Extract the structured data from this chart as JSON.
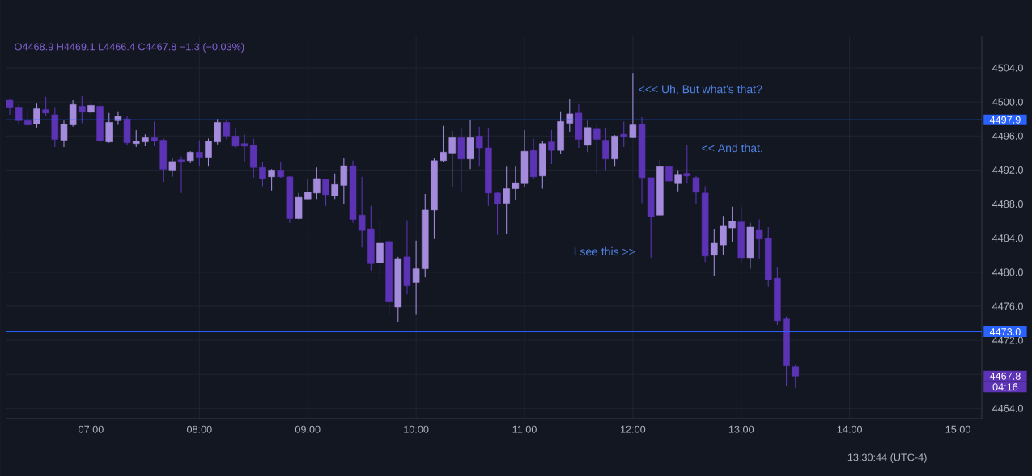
{
  "chart_data": {
    "type": "candlestick",
    "subtitle": "O4468.9 H4469.1 L4466.4 C4467.8 −1.3 (−0.03%)",
    "x": [
      6.25,
      6.3333,
      6.4167,
      6.5,
      6.5833,
      6.6667,
      6.75,
      6.8333,
      6.9167,
      7,
      7.0833,
      7.1667,
      7.25,
      7.3333,
      7.4167,
      7.5,
      7.5833,
      7.6667,
      7.75,
      7.8333,
      7.9167,
      8,
      8.0833,
      8.1667,
      8.25,
      8.3333,
      8.4167,
      8.5,
      8.5833,
      8.6667,
      8.75,
      8.8333,
      8.9167,
      9,
      9.0833,
      9.1667,
      9.25,
      9.3333,
      9.4167,
      9.5,
      9.5833,
      9.6667,
      9.75,
      9.8333,
      9.9167,
      10,
      10.0833,
      10.1667,
      10.25,
      10.3333,
      10.4167,
      10.5,
      10.5833,
      10.6667,
      10.75,
      10.8333,
      10.9167,
      11,
      11.0833,
      11.1667,
      11.25,
      11.3333,
      11.4167,
      11.5,
      11.5833,
      11.6667,
      11.75,
      11.8333,
      11.9167,
      12,
      12.0833,
      12.1667,
      12.25,
      12.3333,
      12.4167,
      12.5,
      12.5833,
      12.6667,
      12.75,
      12.8333,
      12.9167,
      13,
      13.0833,
      13.1667,
      13.25,
      13.3333,
      13.4167,
      13.5
    ],
    "ohlc": [
      [
        4500.2,
        4500.3,
        4498.5,
        4499.3
      ],
      [
        4499.3,
        4499.7,
        4497.3,
        4497.8
      ],
      [
        4497.8,
        4499.1,
        4497.2,
        4497.3
      ],
      [
        4497.4,
        4499.8,
        4497.0,
        4499.2
      ],
      [
        4499.1,
        4500.6,
        4498.3,
        4498.7
      ],
      [
        4498.5,
        4499.3,
        4494.7,
        4495.6
      ],
      [
        4495.5,
        4497.8,
        4494.7,
        4497.4
      ],
      [
        4497.3,
        4500.2,
        4497.1,
        4499.7
      ],
      [
        4499.5,
        4500.7,
        4497.5,
        4498.8
      ],
      [
        4498.8,
        4500.2,
        4498.4,
        4499.6
      ],
      [
        4499.5,
        4500.1,
        4495.0,
        4495.4
      ],
      [
        4495.3,
        4498.7,
        4495.2,
        4497.6
      ],
      [
        4497.8,
        4498.9,
        4497.3,
        4498.3
      ],
      [
        4498.0,
        4498.3,
        4494.9,
        4495.2
      ],
      [
        4495.1,
        4496.7,
        4494.7,
        4495.4
      ],
      [
        4495.3,
        4496.2,
        4494.8,
        4495.8
      ],
      [
        4495.8,
        4497.7,
        4494.8,
        4495.4
      ],
      [
        4495.5,
        4495.7,
        4490.6,
        4492.1
      ],
      [
        4492.0,
        4493.4,
        4491.2,
        4493.0
      ],
      [
        4493.2,
        4493.6,
        4489.3,
        4493.0
      ],
      [
        4493.1,
        4494.2,
        4492.8,
        4494.1
      ],
      [
        4494.1,
        4495.5,
        4492.5,
        4493.5
      ],
      [
        4493.5,
        4495.7,
        4492.4,
        4495.4
      ],
      [
        4495.3,
        4498.0,
        4495.0,
        4497.6
      ],
      [
        4497.6,
        4497.9,
        4495.6,
        4496.0
      ],
      [
        4496.0,
        4496.9,
        4494.6,
        4494.8
      ],
      [
        4495.1,
        4496.2,
        4493.0,
        4494.8
      ],
      [
        4494.9,
        4495.7,
        4491.1,
        4492.3
      ],
      [
        4492.3,
        4492.9,
        4490.1,
        4491.0
      ],
      [
        4491.2,
        4492.1,
        4489.6,
        4492.0
      ],
      [
        4492.0,
        4492.9,
        4491.1,
        4491.2
      ],
      [
        4491.2,
        4491.3,
        4485.8,
        4486.3
      ],
      [
        4486.3,
        4489.3,
        4486.2,
        4488.8
      ],
      [
        4488.6,
        4490.9,
        4488.5,
        4489.4
      ],
      [
        4489.3,
        4492.3,
        4488.6,
        4491.0
      ],
      [
        4490.9,
        4491.0,
        4487.8,
        4489.1
      ],
      [
        4489.0,
        4491.6,
        4488.6,
        4490.3
      ],
      [
        4490.2,
        4493.4,
        4488.0,
        4492.5
      ],
      [
        4492.5,
        4493.1,
        4485.8,
        4486.2
      ],
      [
        4486.7,
        4491.2,
        4482.9,
        4484.9
      ],
      [
        4485.1,
        4487.8,
        4480.2,
        4481.0
      ],
      [
        4481.1,
        4486.3,
        4479.2,
        4483.4
      ],
      [
        4483.6,
        4483.8,
        4475.0,
        4476.5
      ],
      [
        4475.9,
        4481.8,
        4474.2,
        4481.6
      ],
      [
        4481.8,
        4486.1,
        4477.4,
        4478.4
      ],
      [
        4478.8,
        4483.7,
        4475.0,
        4480.4
      ],
      [
        4480.4,
        4489.2,
        4479.4,
        4487.3
      ],
      [
        4487.3,
        4493.4,
        4483.9,
        4493.1
      ],
      [
        4493.1,
        4497.2,
        4492.9,
        4494.1
      ],
      [
        4494.0,
        4496.6,
        4490.0,
        4495.8
      ],
      [
        4495.8,
        4496.9,
        4489.5,
        4493.3
      ],
      [
        4493.3,
        4497.9,
        4492.1,
        4495.8
      ],
      [
        4496.0,
        4497.1,
        4492.4,
        4494.6
      ],
      [
        4494.6,
        4496.9,
        4487.8,
        4489.3
      ],
      [
        4489.3,
        4489.4,
        4484.4,
        4488.0
      ],
      [
        4488.1,
        4492.4,
        4484.5,
        4489.8
      ],
      [
        4489.8,
        4492.4,
        4488.5,
        4490.5
      ],
      [
        4490.4,
        4496.7,
        4490.0,
        4494.2
      ],
      [
        4494.3,
        4495.7,
        4491.0,
        4491.2
      ],
      [
        4491.3,
        4495.4,
        4489.8,
        4495.1
      ],
      [
        4495.3,
        4496.7,
        4492.7,
        4494.3
      ],
      [
        4494.3,
        4498.9,
        4493.9,
        4497.7
      ],
      [
        4497.5,
        4500.3,
        4496.5,
        4498.6
      ],
      [
        4498.7,
        4499.7,
        4494.6,
        4495.6
      ],
      [
        4494.9,
        4497.8,
        4494.1,
        4497.0
      ],
      [
        4496.8,
        4497.4,
        4491.6,
        4495.6
      ],
      [
        4495.5,
        4496.9,
        4492.0,
        4493.3
      ],
      [
        4493.3,
        4496.1,
        4492.4,
        4496.0
      ],
      [
        4496.2,
        4497.7,
        4494.7,
        4495.9
      ],
      [
        4495.8,
        4503.4,
        4495.8,
        4497.3
      ],
      [
        4497.4,
        4498.2,
        4488.1,
        4491.1
      ],
      [
        4491.1,
        4491.1,
        4481.7,
        4486.5
      ],
      [
        4486.7,
        4493.2,
        4486.6,
        4492.4
      ],
      [
        4492.4,
        4493.4,
        4489.3,
        4490.7
      ],
      [
        4490.4,
        4492.0,
        4489.5,
        4491.5
      ],
      [
        4491.6,
        4494.9,
        4490.4,
        4491.3
      ],
      [
        4491.1,
        4491.3,
        4488.0,
        4489.4
      ],
      [
        4489.3,
        4490.1,
        4481.2,
        4481.9
      ],
      [
        4482.0,
        4485.1,
        4479.6,
        4483.4
      ],
      [
        4483.2,
        4486.6,
        4482.0,
        4485.4
      ],
      [
        4485.2,
        4487.7,
        4483.5,
        4486.0
      ],
      [
        4485.9,
        4487.7,
        4481.1,
        4481.7
      ],
      [
        4481.7,
        4485.8,
        4480.4,
        4485.3
      ],
      [
        4485.0,
        4486.2,
        4481.5,
        4483.9
      ],
      [
        4484.0,
        4485.3,
        4478.3,
        4479.1
      ],
      [
        4479.3,
        4480.6,
        4473.8,
        4474.3
      ],
      [
        4474.5,
        4474.8,
        4466.6,
        4469.0
      ],
      [
        4468.9,
        4469.1,
        4466.4,
        4467.8
      ]
    ],
    "colors": [
      "#5c33b5",
      "#5c33b5",
      "#5c33b5",
      "#a48bdc",
      "#5c33b5",
      "#5c33b5",
      "#a48bdc",
      "#a48bdc",
      "#5c33b5",
      "#a48bdc",
      "#5c33b5",
      "#a48bdc",
      "#a48bdc",
      "#5c33b5",
      "#a48bdc",
      "#a48bdc",
      "#5c33b5",
      "#5c33b5",
      "#a48bdc",
      "#5c33b5",
      "#a48bdc",
      "#5c33b5",
      "#a48bdc",
      "#a48bdc",
      "#5c33b5",
      "#5c33b5",
      "#5c33b5",
      "#5c33b5",
      "#5c33b5",
      "#a48bdc",
      "#5c33b5",
      "#5c33b5",
      "#a48bdc",
      "#a48bdc",
      "#a48bdc",
      "#5c33b5",
      "#a48bdc",
      "#a48bdc",
      "#5c33b5",
      "#5c33b5",
      "#5c33b5",
      "#a48bdc",
      "#5c33b5",
      "#a48bdc",
      "#5c33b5",
      "#a48bdc",
      "#a48bdc",
      "#a48bdc",
      "#a48bdc",
      "#a48bdc",
      "#5c33b5",
      "#a48bdc",
      "#5c33b5",
      "#5c33b5",
      "#5c33b5",
      "#a48bdc",
      "#a48bdc",
      "#a48bdc",
      "#5c33b5",
      "#a48bdc",
      "#5c33b5",
      "#a48bdc",
      "#a48bdc",
      "#5c33b5",
      "#a48bdc",
      "#5c33b5",
      "#5c33b5",
      "#a48bdc",
      "#5c33b5",
      "#a48bdc",
      "#5c33b5",
      "#5c33b5",
      "#a48bdc",
      "#5c33b5",
      "#a48bdc",
      "#5c33b5",
      "#5c33b5",
      "#5c33b5",
      "#a48bdc",
      "#a48bdc",
      "#a48bdc",
      "#5c33b5",
      "#a48bdc",
      "#5c33b5",
      "#5c33b5",
      "#5c33b5",
      "#5c33b5",
      "#5c33b5"
    ],
    "xlim": [
      6.22,
      15.22
    ],
    "ylim": [
      4462.8,
      4507.8
    ],
    "xticks": [
      {
        "value": 7,
        "label": "07:00"
      },
      {
        "value": 8,
        "label": "08:00"
      },
      {
        "value": 9,
        "label": "09:00"
      },
      {
        "value": 10,
        "label": "10:00"
      },
      {
        "value": 11,
        "label": "11:00"
      },
      {
        "value": 12,
        "label": "12:00"
      },
      {
        "value": 13,
        "label": "13:00"
      },
      {
        "value": 14,
        "label": "14:00"
      },
      {
        "value": 15,
        "label": "15:00"
      }
    ],
    "yticks": [
      {
        "value": 4464,
        "label": "4464.0"
      },
      {
        "value": 4468,
        "label": null
      },
      {
        "value": 4472,
        "label": "4472.0"
      },
      {
        "value": 4476,
        "label": "4476.0"
      },
      {
        "value": 4480,
        "label": "4480.0"
      },
      {
        "value": 4484,
        "label": "4484.0"
      },
      {
        "value": 4488,
        "label": "4488.0"
      },
      {
        "value": 4492,
        "label": "4492.0"
      },
      {
        "value": 4496,
        "label": "4496.0"
      },
      {
        "value": 4500,
        "label": "4500.0"
      },
      {
        "value": 4504,
        "label": "4504.0"
      }
    ],
    "grid": true,
    "ref_lines": [
      {
        "axis": "y",
        "value": 4497.9,
        "label": "4497.9",
        "color": "#2962ff"
      },
      {
        "axis": "y",
        "value": 4473.0,
        "label": "4473.0",
        "color": "#2962ff"
      }
    ],
    "annotations": [
      "<<< Uh, But what's that?",
      "<< And that.",
      "I see this >>",
      "4467.8",
      "04:16",
      "13:30:44 (UTC-4)"
    ]
  }
}
